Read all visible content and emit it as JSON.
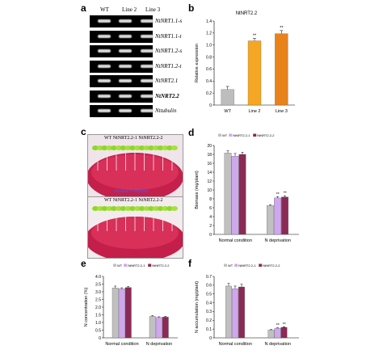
{
  "panels": {
    "a": "a",
    "b": "b",
    "c": "c",
    "d": "d",
    "e": "e",
    "f": "f"
  },
  "gel": {
    "columns": [
      "WT",
      "Line 2",
      "Line 3"
    ],
    "rows": [
      {
        "label": "NtNRT1.1-s",
        "bold": false
      },
      {
        "label": "NtNRT1.1-t",
        "bold": false
      },
      {
        "label": "NtNRT1.2-s",
        "bold": false
      },
      {
        "label": "NtNRT1.2-t",
        "bold": false
      },
      {
        "label": "NtNRT2.1",
        "bold": false
      },
      {
        "label": "NtNRT2.2",
        "bold": true
      },
      {
        "label": "Nttubulin",
        "bold": false
      }
    ]
  },
  "photo_c": {
    "top_caption": "WT     NtNRT2.2-1 NtNRT2.2-2",
    "top_label": "Normal condition",
    "bottom_caption": "WT    NtNRT2.2-1 NtNRT2.2-2"
  },
  "chart_data": [
    {
      "id": "b",
      "type": "bar",
      "title": "NtNRT2.2",
      "ylabel": "Relative expression",
      "categories": [
        "WT",
        "Line 2",
        "Line 3"
      ],
      "values": [
        0.26,
        1.07,
        1.19
      ],
      "errors": [
        0.05,
        0.04,
        0.05
      ],
      "significance": [
        "",
        "**",
        "**"
      ],
      "colors": [
        "#bdbdbd",
        "#f5a623",
        "#e8821a"
      ],
      "ylim": [
        0,
        1.4
      ],
      "yticks": [
        "0",
        "0.2",
        "0.4",
        "0.6",
        "0.8",
        "1.0",
        "1.2",
        "1.4"
      ]
    },
    {
      "id": "d",
      "type": "bar",
      "ylabel": "Biomass (mg/plant)",
      "categories": [
        "Normal condition",
        "N deprivation"
      ],
      "series": [
        {
          "name": "WT",
          "values": [
            18.3,
            6.5
          ],
          "errors": [
            0.5,
            0.2
          ],
          "color": "#c0c0c0"
        },
        {
          "name": "NtNRT2.2-1",
          "values": [
            17.6,
            8.2
          ],
          "errors": [
            0.6,
            0.3
          ],
          "color": "#cfa7ee"
        },
        {
          "name": "NtNRT2.2-2",
          "values": [
            18.0,
            8.4
          ],
          "errors": [
            0.5,
            0.3
          ],
          "color": "#8b2a55"
        }
      ],
      "significance": [
        [
          "",
          "",
          ""
        ],
        [
          "",
          "**",
          "**"
        ]
      ],
      "ylim": [
        0,
        20
      ],
      "yticks": [
        "0",
        "2",
        "4",
        "6",
        "8",
        "10",
        "12",
        "14",
        "16",
        "18",
        "20"
      ]
    },
    {
      "id": "e",
      "type": "bar",
      "ylabel": "N concentration (%)",
      "categories": [
        "Normal condition",
        "N deprivation"
      ],
      "series": [
        {
          "name": "WT",
          "values": [
            3.25,
            1.4
          ],
          "errors": [
            0.12,
            0.05
          ],
          "color": "#c0c0c0"
        },
        {
          "name": "NtNRT2.2-1",
          "values": [
            3.2,
            1.33
          ],
          "errors": [
            0.06,
            0.04
          ],
          "color": "#cfa7ee"
        },
        {
          "name": "NtNRT2.2-2",
          "values": [
            3.28,
            1.35
          ],
          "errors": [
            0.07,
            0.05
          ],
          "color": "#8b2a55"
        }
      ],
      "ylim": [
        0,
        4
      ],
      "yticks": [
        "0",
        "0.5",
        "1.0",
        "1.5",
        "2.0",
        "2.5",
        "3.0",
        "3.5",
        "4.0"
      ]
    },
    {
      "id": "f",
      "type": "bar",
      "ylabel": "N accumulation (mg/plant)",
      "categories": [
        "Normal condition",
        "N deprivation"
      ],
      "series": [
        {
          "name": "WT",
          "values": [
            0.59,
            0.09
          ],
          "errors": [
            0.03,
            0.005
          ],
          "color": "#c0c0c0"
        },
        {
          "name": "NtNRT2.2-1",
          "values": [
            0.56,
            0.11
          ],
          "errors": [
            0.03,
            0.005
          ],
          "color": "#cfa7ee"
        },
        {
          "name": "NtNRT2.2-2",
          "values": [
            0.58,
            0.12
          ],
          "errors": [
            0.03,
            0.006
          ],
          "color": "#8b2a55"
        }
      ],
      "significance": [
        [
          "",
          "",
          ""
        ],
        [
          "",
          "**",
          "**"
        ]
      ],
      "ylim": [
        0,
        0.7
      ],
      "yticks": [
        "0",
        "0.1",
        "0.2",
        "0.3",
        "0.4",
        "0.5",
        "0.6",
        "0.7"
      ]
    }
  ]
}
